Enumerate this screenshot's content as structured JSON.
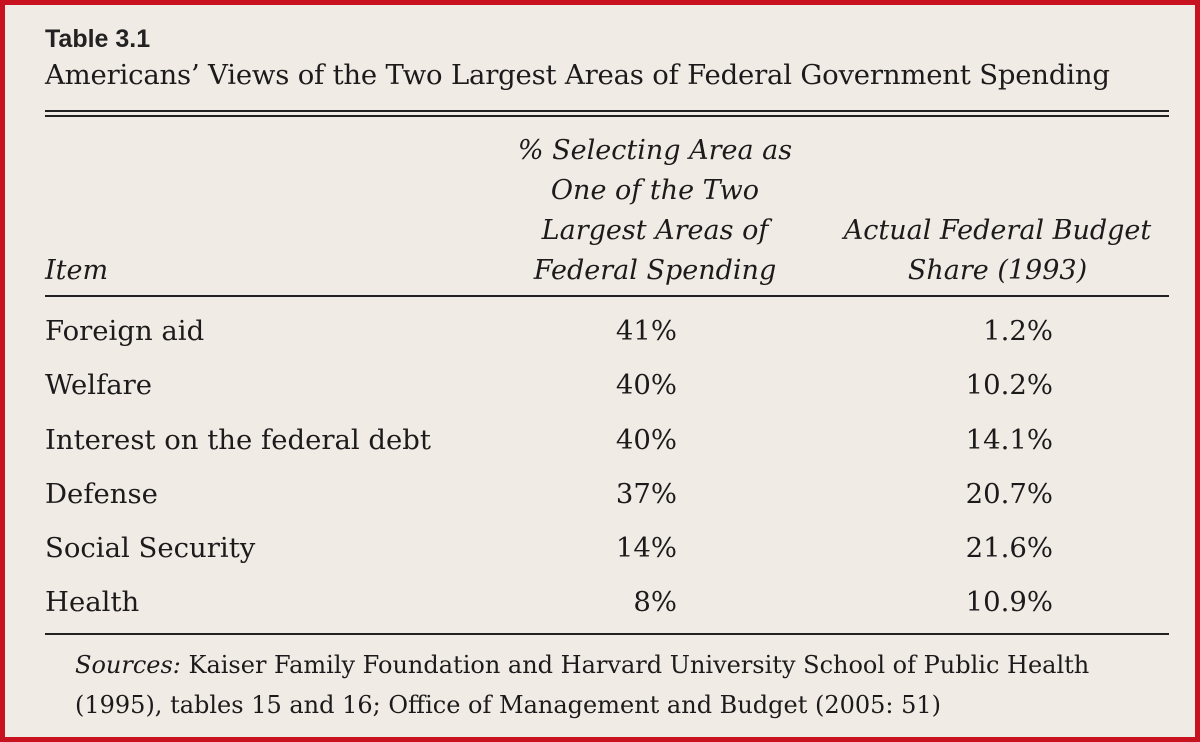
{
  "table": {
    "label": "Table 3.1",
    "title": "Americans’ Views of the Two Largest Areas of Federal Government Spending",
    "headers": {
      "item": "Item",
      "pct": "% Selecting Area as\nOne of the Two\nLargest Areas of\nFederal Spending",
      "budget": "Actual Federal Budget\nShare (1993)"
    },
    "rows": [
      {
        "item": "Foreign aid",
        "pct": "41%",
        "budget": "1.2%"
      },
      {
        "item": "Welfare",
        "pct": "40%",
        "budget": "10.2%"
      },
      {
        "item": "Interest on the federal debt",
        "pct": "40%",
        "budget": "14.1%"
      },
      {
        "item": "Defense",
        "pct": "37%",
        "budget": "20.7%"
      },
      {
        "item": "Social Security",
        "pct": "14%",
        "budget": "21.6%"
      },
      {
        "item": "Health",
        "pct": "8%",
        "budget": "10.9%"
      }
    ],
    "sources_label": "Sources:",
    "sources_text": "Kaiser Family Foundation and Harvard University School of Public Health (1995), tables 15 and 16; Office of Management and Budget (2005: 51)"
  }
}
